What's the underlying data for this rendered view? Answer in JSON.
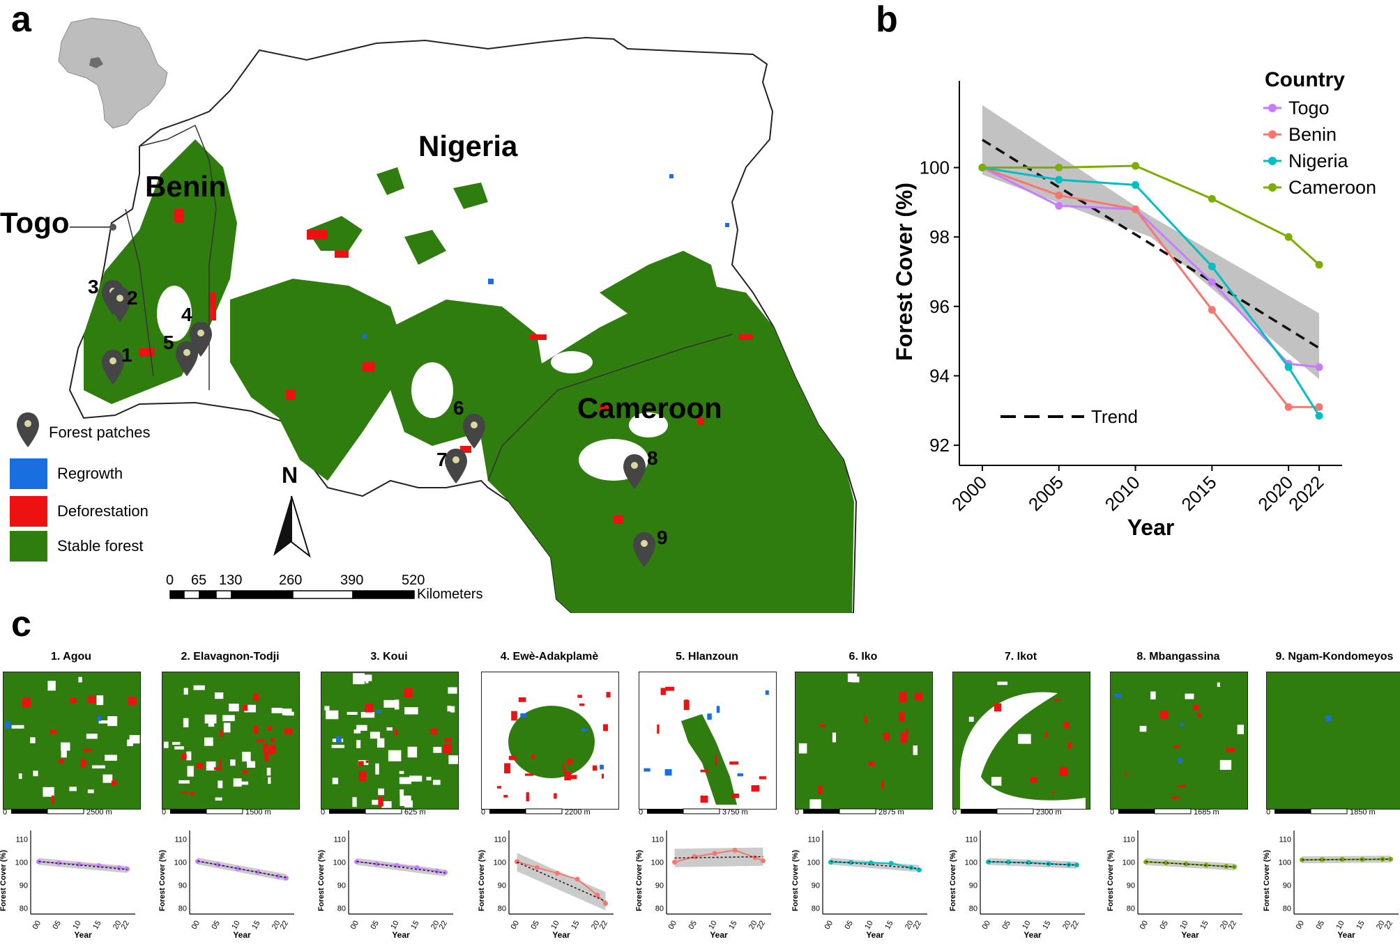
{
  "panels": {
    "a": "a",
    "b": "b",
    "c": "c"
  },
  "map": {
    "countries": [
      "Nigeria",
      "Benin",
      "Togo",
      "Cameroon"
    ],
    "markers": [
      "1",
      "2",
      "3",
      "4",
      "5",
      "6",
      "7",
      "8",
      "9"
    ],
    "legend": {
      "patches": "Forest patches",
      "regrowth": "Regrowth",
      "deforestation": "Deforestation",
      "stable": "Stable forest"
    },
    "north": "N",
    "scale_ticks": [
      "0",
      "65",
      "130",
      "260",
      "390",
      "520"
    ],
    "scale_unit": "Kilometers",
    "colors": {
      "regrowth": "#1a6fe0",
      "deforestation": "#ee1111",
      "stable": "#2f7d0e",
      "marker": "#454545"
    }
  },
  "chart_data": [
    {
      "type": "line",
      "panel": "b",
      "title": "",
      "xlabel": "Year",
      "ylabel": "Forest Cover (%)",
      "x": [
        2000,
        2005,
        2010,
        2015,
        2020,
        2022
      ],
      "x_tick_labels": [
        "2000",
        "2005",
        "2010",
        "2015",
        "2020",
        "2022"
      ],
      "ylim": [
        91.5,
        102.5
      ],
      "y_ticks": [
        "92",
        "94",
        "96",
        "98",
        "100"
      ],
      "legend_title": "Country",
      "series": [
        {
          "name": "Togo",
          "color": "#c77cff",
          "values": [
            100.0,
            98.9,
            98.8,
            96.7,
            94.35,
            94.25
          ]
        },
        {
          "name": "Benin",
          "color": "#f8766d",
          "values": [
            100.0,
            99.2,
            98.8,
            95.9,
            93.1,
            93.1
          ]
        },
        {
          "name": "Nigeria",
          "color": "#00bfc4",
          "values": [
            100.0,
            99.65,
            99.5,
            97.15,
            94.25,
            92.85
          ]
        },
        {
          "name": "Cameroon",
          "color": "#7cae00",
          "values": [
            100.0,
            100.0,
            100.05,
            99.1,
            98.0,
            97.2
          ]
        }
      ],
      "trend": {
        "name": "Trend",
        "start": 100.8,
        "end": 94.8,
        "ci_start": [
          99.8,
          101.8
        ],
        "ci_mid": [
          98.0,
          98.6
        ],
        "ci_end": [
          93.9,
          95.8
        ]
      }
    },
    {
      "type": "line",
      "panel": "c",
      "xlabel": "Year",
      "ylabel": "Forest Cover (%)",
      "x_tick_labels": [
        "00",
        "05",
        "10",
        "15",
        "20",
        "22"
      ],
      "y_ticks": [
        "80",
        "90",
        "100",
        "110"
      ],
      "ylim": [
        78,
        112
      ],
      "patches": [
        {
          "title": "1. Agou",
          "scale": "2500 m",
          "color": "#c77cff",
          "x": [
            2000,
            2005,
            2010,
            2015,
            2020,
            2022
          ],
          "values": [
            100.2,
            99.6,
            99.1,
            98.5,
            97.5,
            97.0
          ],
          "trend": [
            100.3,
            96.8
          ]
        },
        {
          "title": "2. Elavagnon-Todji",
          "scale": "1500 m",
          "color": "#c77cff",
          "x": [
            2000,
            2005,
            2010,
            2015,
            2020,
            2022
          ],
          "values": [
            100.3,
            98.9,
            97.2,
            95.6,
            93.8,
            93.1
          ],
          "trend": [
            100.5,
            93.3
          ]
        },
        {
          "title": "3. Koui",
          "scale": "625 m",
          "color": "#c77cff",
          "x": [
            2000,
            2005,
            2010,
            2015,
            2020,
            2022
          ],
          "values": [
            100.2,
            99.2,
            98.6,
            97.6,
            96.0,
            95.5
          ],
          "trend": [
            100.3,
            95.3
          ]
        },
        {
          "title": "4. Ewè-Adakplamè",
          "scale": "2200 m",
          "color": "#f8766d",
          "x": [
            2000,
            2005,
            2010,
            2015,
            2020,
            2022
          ],
          "values": [
            100.2,
            97.6,
            95.2,
            92.6,
            85.6,
            82.0
          ],
          "trend": [
            100.0,
            83.0
          ]
        },
        {
          "title": "5. Hlanzoun",
          "scale": "3750 m",
          "color": "#f8766d",
          "x": [
            2000,
            2005,
            2010,
            2015,
            2020,
            2022
          ],
          "values": [
            100.0,
            102.4,
            103.8,
            105.2,
            102.0,
            100.6
          ],
          "trend": [
            101.8,
            102.4
          ]
        },
        {
          "title": "6. Iko",
          "scale": "2875 m",
          "color": "#00bfc4",
          "x": [
            2000,
            2005,
            2010,
            2015,
            2020,
            2022
          ],
          "values": [
            100.0,
            99.9,
            99.7,
            99.5,
            97.6,
            96.6
          ],
          "trend": [
            100.4,
            97.2
          ]
        },
        {
          "title": "7. Ikot",
          "scale": "2300 m",
          "color": "#00bfc4",
          "x": [
            2000,
            2005,
            2010,
            2015,
            2020,
            2022
          ],
          "values": [
            100.1,
            100.0,
            99.9,
            99.3,
            98.9,
            98.8
          ],
          "trend": [
            100.3,
            98.7
          ]
        },
        {
          "title": "8. Mbangassina",
          "scale": "1685 m",
          "color": "#7cae00",
          "x": [
            2000,
            2005,
            2010,
            2015,
            2020,
            2022
          ],
          "values": [
            100.1,
            99.7,
            99.2,
            98.7,
            98.2,
            98.0
          ],
          "trend": [
            100.2,
            97.9
          ]
        },
        {
          "title": "9. Ngam-Kondomeyos",
          "scale": "1850 m",
          "color": "#7cae00",
          "x": [
            2000,
            2005,
            2010,
            2015,
            2020,
            2022
          ],
          "values": [
            101.0,
            101.1,
            101.2,
            101.2,
            101.3,
            101.3
          ],
          "trend": [
            101.0,
            101.3
          ]
        }
      ]
    }
  ]
}
